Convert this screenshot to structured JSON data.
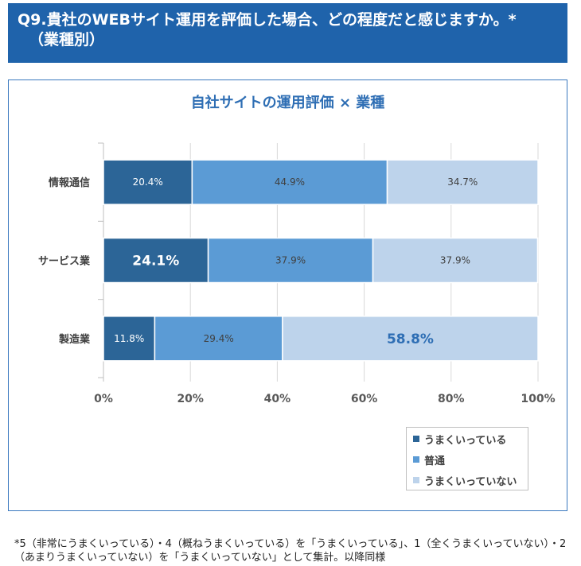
{
  "header": {
    "title": "Q9.貴社のWEBサイト運用を評価した場合、どの程度だと感じますか。*",
    "subtitle": "（業種別）"
  },
  "colors": {
    "header_bg": "#1f63ab",
    "panel_border": "#3a78be",
    "accent": "#2e6eb4",
    "text": "#404040"
  },
  "chart_data": {
    "type": "bar",
    "orientation": "horizontal",
    "stacked": true,
    "title": "自社サイトの運用評価 × 業種",
    "categories": [
      "情報通信",
      "サービス業",
      "製造業"
    ],
    "series": [
      {
        "name": "うまくいっている",
        "values": [
          20.4,
          24.1,
          11.8
        ],
        "color": "#2c6597"
      },
      {
        "name": "普通",
        "values": [
          44.9,
          37.9,
          29.4
        ],
        "color": "#5b9bd5"
      },
      {
        "name": "うまくいっていない",
        "values": [
          34.7,
          37.9,
          58.8
        ],
        "color": "#bdd3eb"
      }
    ],
    "value_suffix": "%",
    "xlim": [
      0,
      100
    ],
    "x_ticks": [
      0,
      20,
      40,
      60,
      80,
      100
    ],
    "grid": true,
    "legend_position": "bottom-right",
    "emphasized_labels": [
      {
        "category": "サービス業",
        "series": "うまくいっている"
      },
      {
        "category": "製造業",
        "series": "うまくいっていない"
      }
    ]
  },
  "footnote": "*5（非常にうまくいっている）・4（概ねうまくいっている）を「うまくいっている」、1（全くうまくいっていない）・2（あまりうまくいっていない）を「うまくいっていない」として集計。以降同様"
}
